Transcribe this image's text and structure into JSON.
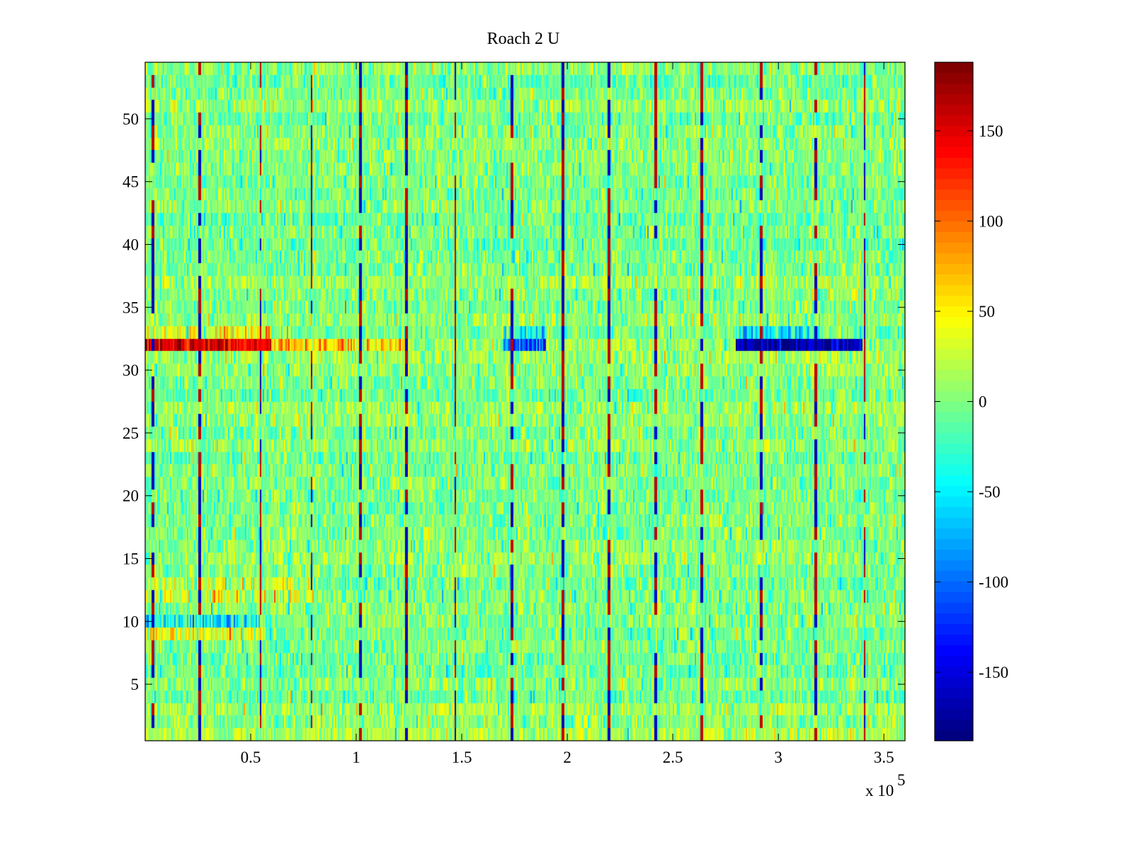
{
  "chart_data": {
    "type": "heatmap",
    "title": "Roach 2 U",
    "xlabel": "",
    "ylabel": "",
    "xlim": [
      0,
      360000
    ],
    "ylim": [
      0.5,
      54.5
    ],
    "rows": 54,
    "xticks": [
      50000,
      100000,
      150000,
      200000,
      250000,
      300000,
      350000
    ],
    "xtick_labels": [
      "0.5",
      "1",
      "1.5",
      "2",
      "2.5",
      "3",
      "3.5"
    ],
    "x_multiplier_label": "x 10",
    "x_multiplier_exponent": "5",
    "yticks": [
      5,
      10,
      15,
      20,
      25,
      30,
      35,
      40,
      45,
      50
    ],
    "ytick_labels": [
      "5",
      "10",
      "15",
      "20",
      "25",
      "30",
      "35",
      "40",
      "45",
      "50"
    ],
    "colormap": "jet",
    "clim": [
      -188,
      188
    ],
    "colorbar_ticks": [
      150,
      100,
      50,
      0,
      -50,
      -100,
      -150
    ],
    "colorbar_tick_labels": [
      "150",
      "100",
      "50",
      "0",
      "-50",
      "-100",
      "-150"
    ],
    "background_noise": {
      "mean": 0,
      "std": 22
    },
    "periodic_spike_columns": [
      4000,
      26000,
      55000,
      79000,
      102000,
      124000,
      147000,
      174000,
      198000,
      220000,
      242000,
      264000,
      292000,
      318000,
      341000
    ],
    "spike_amplitude": 160,
    "row_features": [
      {
        "row": 32,
        "x_range": [
          0,
          60000
        ],
        "value": 150
      },
      {
        "row": 32,
        "x_range": [
          60000,
          125000
        ],
        "value": 60
      },
      {
        "row": 32,
        "x_range": [
          170000,
          190000
        ],
        "value": -110
      },
      {
        "row": 32,
        "x_range": [
          280000,
          340000
        ],
        "value": -170
      },
      {
        "row": 33,
        "x_range": [
          0,
          60000
        ],
        "value": 45
      },
      {
        "row": 33,
        "x_range": [
          170000,
          190000
        ],
        "value": -40
      },
      {
        "row": 33,
        "x_range": [
          280000,
          320000
        ],
        "value": -50
      },
      {
        "row": 10,
        "x_range": [
          0,
          55000
        ],
        "value": -45
      },
      {
        "row": 9,
        "x_range": [
          0,
          55000
        ],
        "value": 40
      },
      {
        "row": 12,
        "x_range": [
          0,
          80000
        ],
        "value": 25
      },
      {
        "row": 13,
        "x_range": [
          0,
          80000
        ],
        "value": 20
      }
    ]
  }
}
